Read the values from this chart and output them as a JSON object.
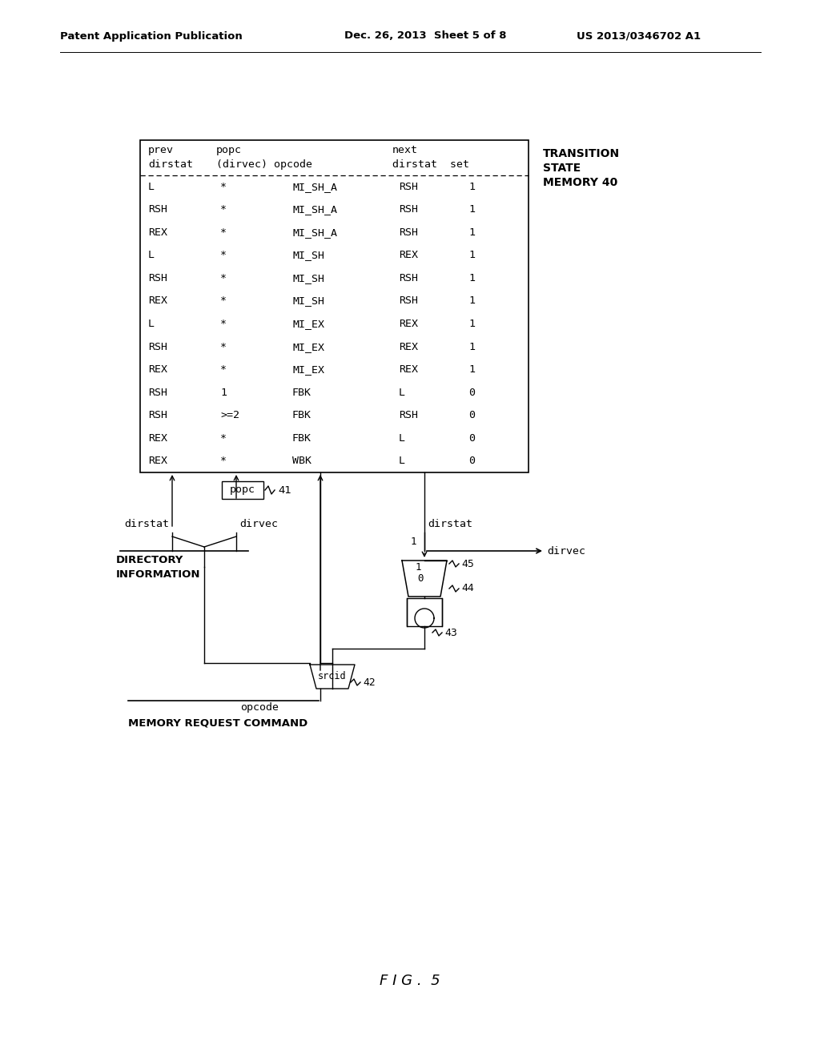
{
  "header_left": "Patent Application Publication",
  "header_mid": "Dec. 26, 2013  Sheet 5 of 8",
  "header_right": "US 2013/0346702 A1",
  "figure_label": "F I G .  5",
  "table_label_line1": "TRANSITION",
  "table_label_line2": "STATE",
  "table_label_line3": "MEMORY 40",
  "table_rows": [
    [
      "L",
      "*",
      "MI_SH_A",
      "RSH",
      "1"
    ],
    [
      "RSH",
      "*",
      "MI_SH_A",
      "RSH",
      "1"
    ],
    [
      "REX",
      "*",
      "MI_SH_A",
      "RSH",
      "1"
    ],
    [
      "L",
      "*",
      "MI_SH",
      "REX",
      "1"
    ],
    [
      "RSH",
      "*",
      "MI_SH",
      "RSH",
      "1"
    ],
    [
      "REX",
      "*",
      "MI_SH",
      "RSH",
      "1"
    ],
    [
      "L",
      "*",
      "MI_EX",
      "REX",
      "1"
    ],
    [
      "RSH",
      "*",
      "MI_EX",
      "REX",
      "1"
    ],
    [
      "REX",
      "*",
      "MI_EX",
      "REX",
      "1"
    ],
    [
      "RSH",
      "1",
      "FBK",
      "L",
      "0"
    ],
    [
      "RSH",
      ">=2",
      "FBK",
      "RSH",
      "0"
    ],
    [
      "REX",
      "*",
      "FBK",
      "L",
      "0"
    ],
    [
      "REX",
      "*",
      "WBK",
      "L",
      "0"
    ]
  ],
  "background_color": "#ffffff",
  "line_color": "#000000"
}
